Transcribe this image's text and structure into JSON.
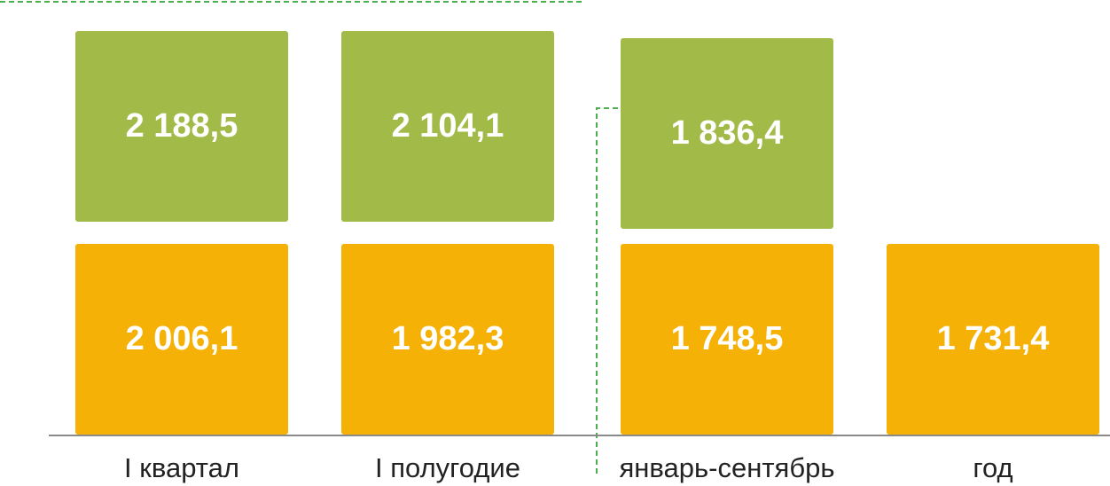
{
  "columns": [
    {
      "label": "I квартал",
      "top": "2 188,5",
      "bottom": "2 006,1"
    },
    {
      "label": "I полугодие",
      "top": "2 104,1",
      "bottom": "1 982,3"
    },
    {
      "label": "январь-сентябрь",
      "top": "1 836,4",
      "bottom": "1 748,5"
    },
    {
      "label": "год",
      "bottom": "1 731,4"
    }
  ]
}
